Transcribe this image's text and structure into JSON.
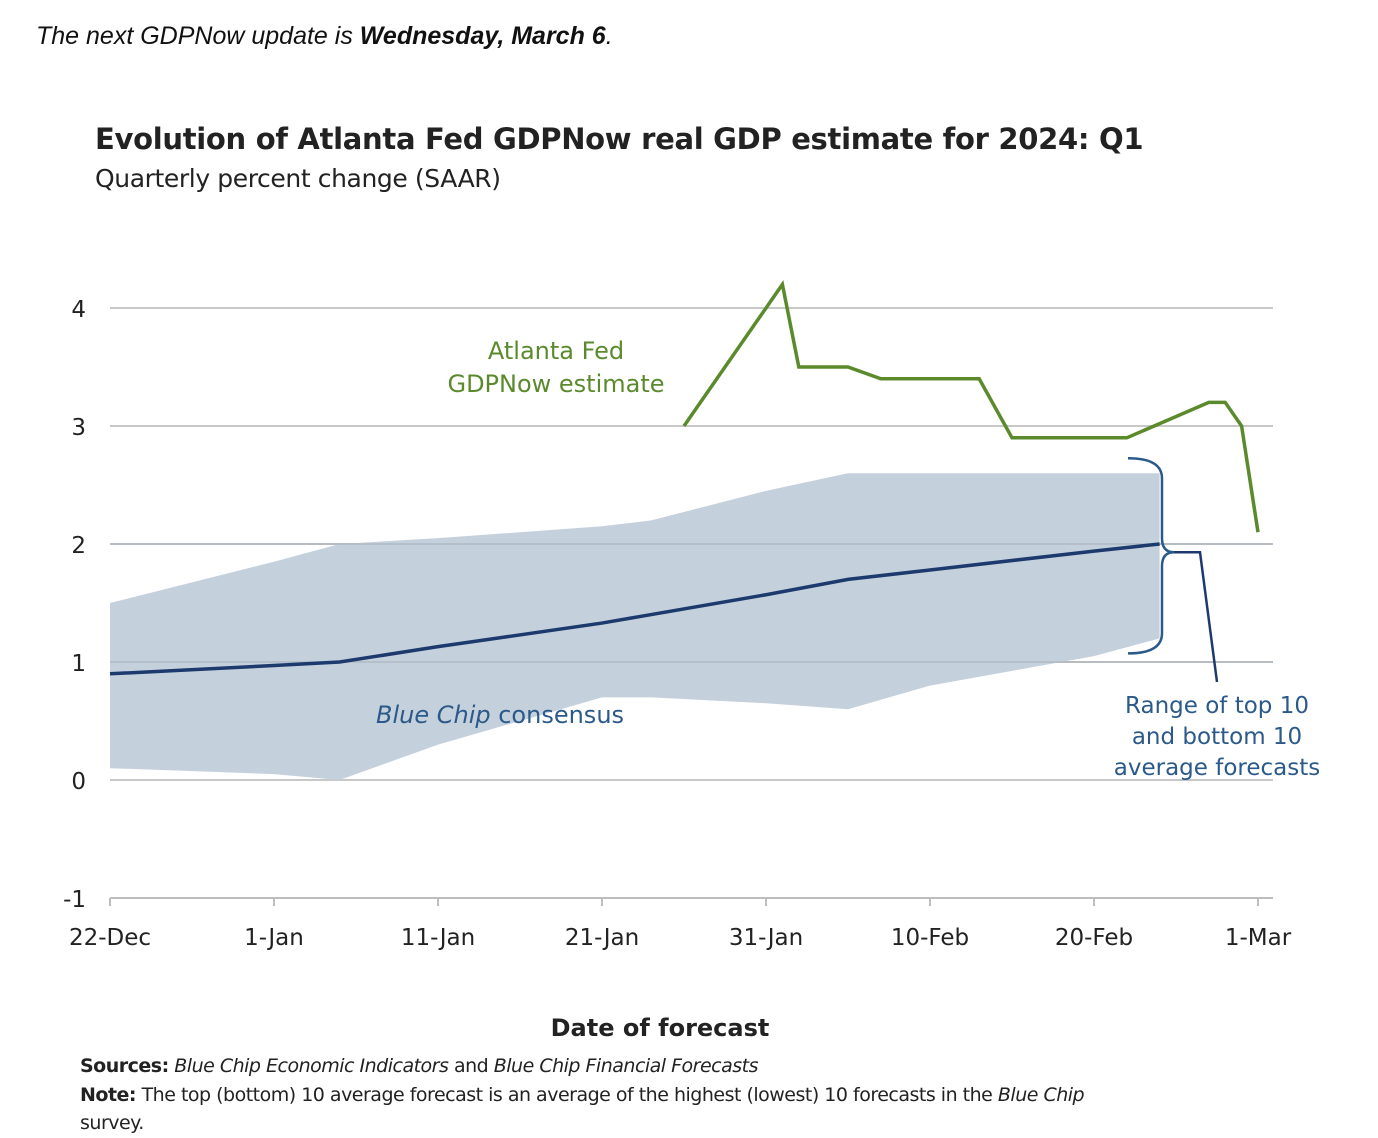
{
  "header": {
    "text_prefix": "The next GDPNow update is ",
    "text_bold": "Wednesday, March 6",
    "text_suffix": "."
  },
  "colors": {
    "gdpnow": "#5b8a2c",
    "consensus": "#1d3a6e",
    "range_fill": "#c4d1dc",
    "grid": "#c8c8c8",
    "annotation_blue": "#2b5a8a"
  },
  "chart_data": {
    "type": "line",
    "title": "Evolution of Atlanta Fed GDPNow real GDP estimate for 2024: Q1",
    "subtitle": "Quarterly percent change (SAAR)",
    "xlabel": "Date of forecast",
    "ylabel": "",
    "xlim": [
      "2023-12-22",
      "2024-03-01"
    ],
    "ylim": [
      -1,
      4
    ],
    "y_ticks": [
      -1,
      0,
      1,
      2,
      3,
      4
    ],
    "x_tick_labels": [
      "22-Dec",
      "1-Jan",
      "11-Jan",
      "21-Jan",
      "31-Jan",
      "10-Feb",
      "20-Feb",
      "1-Mar"
    ],
    "grid": true,
    "series": [
      {
        "name": "Atlanta Fed GDPNow estimate",
        "x": [
          "2024-01-26",
          "2024-02-01",
          "2024-02-02",
          "2024-02-05",
          "2024-02-07",
          "2024-02-13",
          "2024-02-15",
          "2024-02-22",
          "2024-02-27",
          "2024-02-28",
          "2024-02-29",
          "2024-03-01"
        ],
        "y": [
          3.0,
          4.2,
          3.5,
          3.5,
          3.4,
          3.4,
          2.9,
          2.9,
          3.2,
          3.2,
          3.0,
          2.1
        ]
      },
      {
        "name": "Blue Chip consensus",
        "x": [
          "2023-12-22",
          "2024-01-01",
          "2024-01-05",
          "2024-01-11",
          "2024-01-21",
          "2024-01-31",
          "2024-02-05",
          "2024-02-10",
          "2024-02-20",
          "2024-02-24"
        ],
        "y": [
          0.9,
          0.97,
          1.0,
          1.13,
          1.33,
          1.57,
          1.7,
          1.78,
          1.94,
          2.0
        ]
      }
    ],
    "range_band": {
      "x": [
        "2023-12-22",
        "2024-01-01",
        "2024-01-05",
        "2024-01-11",
        "2024-01-21",
        "2024-01-24",
        "2024-01-31",
        "2024-02-05",
        "2024-02-10",
        "2024-02-20",
        "2024-02-24"
      ],
      "upper": [
        1.5,
        1.85,
        2.0,
        2.05,
        2.15,
        2.2,
        2.45,
        2.6,
        2.6,
        2.6,
        2.6
      ],
      "lower": [
        0.1,
        0.05,
        0.0,
        0.3,
        0.7,
        0.7,
        0.65,
        0.6,
        0.8,
        1.05,
        1.2
      ]
    },
    "annotations": {
      "gdpnow_label_lines": [
        "Atlanta Fed",
        "GDPNow estimate"
      ],
      "consensus_label_italic": "Blue Chip",
      "consensus_label_rest": " consensus",
      "range_label_lines": [
        "Range of top 10",
        "and bottom 10",
        "average forecasts"
      ]
    }
  },
  "footer": {
    "sources_label": "Sources:",
    "sources_text_1": "Blue Chip Economic Indicators",
    "sources_text_2": " and ",
    "sources_text_3": "Blue Chip Financial Forecasts",
    "note_label": "Note:",
    "note_text_1": " The top (bottom) 10 average forecast is an average of the highest (lowest) 10 forecasts in the ",
    "note_text_italic": "Blue Chip",
    "note_text_2": "survey."
  }
}
